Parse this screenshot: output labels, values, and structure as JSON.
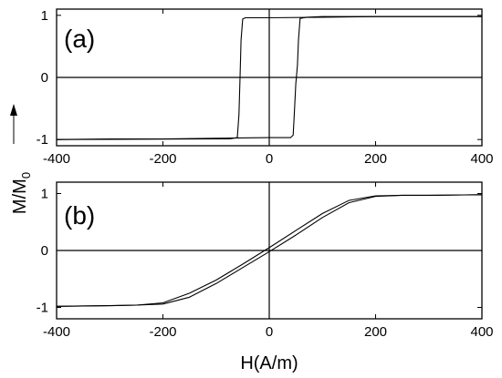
{
  "figure": {
    "ylabel": "M/M",
    "ylabel_subscript": "0",
    "xlabel": "H(A/m)"
  },
  "chart_data": [
    {
      "type": "line",
      "panel_label": "(a)",
      "xlim": [
        -400,
        400
      ],
      "ylim": [
        -1.1,
        1.1
      ],
      "x_ticks": [
        -400,
        -200,
        0,
        200,
        400
      ],
      "x_tick_labels": [
        "-400",
        "-200",
        "0",
        "200",
        "400"
      ],
      "y_ticks": [
        -1,
        0,
        1
      ],
      "y_tick_labels": [
        "-1",
        "0",
        "1"
      ],
      "grid": false,
      "series": [
        {
          "color": "#000000",
          "x": [
            -400,
            -100,
            -75,
            -60,
            -57,
            -55,
            -53,
            -50,
            -45,
            -30,
            0,
            100,
            200,
            300,
            400
          ],
          "y": [
            -1.0,
            -0.99,
            -0.99,
            -0.97,
            -0.6,
            0.0,
            0.6,
            0.94,
            0.96,
            0.96,
            0.96,
            0.97,
            0.98,
            0.98,
            0.98
          ]
        },
        {
          "color": "#000000",
          "x": [
            400,
            100,
            70,
            58,
            55,
            53,
            50,
            47,
            45,
            40,
            30,
            0,
            -100,
            -200,
            -300,
            -400
          ],
          "y": [
            0.98,
            0.98,
            0.97,
            0.95,
            0.6,
            0.2,
            -0.1,
            -0.6,
            -0.93,
            -0.97,
            -0.97,
            -0.97,
            -0.98,
            -0.99,
            -0.99,
            -1.0
          ]
        }
      ]
    },
    {
      "type": "line",
      "panel_label": "(b)",
      "xlim": [
        -400,
        400
      ],
      "ylim": [
        -1.2,
        1.2
      ],
      "x_ticks": [
        -400,
        -200,
        0,
        200,
        400
      ],
      "x_tick_labels": [
        "-400",
        "-200",
        "0",
        "200",
        "400"
      ],
      "y_ticks": [
        -1,
        0,
        1
      ],
      "y_tick_labels": [
        "-1",
        "0",
        "1"
      ],
      "grid": false,
      "series": [
        {
          "color": "#000000",
          "x": [
            -400,
            -300,
            -250,
            -200,
            -150,
            -100,
            -50,
            0,
            50,
            100,
            150,
            200,
            250,
            300,
            400
          ],
          "y": [
            -0.98,
            -0.97,
            -0.96,
            -0.92,
            -0.75,
            -0.52,
            -0.24,
            0.05,
            0.35,
            0.65,
            0.88,
            0.96,
            0.97,
            0.97,
            0.98
          ]
        },
        {
          "color": "#000000",
          "x": [
            400,
            300,
            250,
            200,
            150,
            100,
            50,
            0,
            -50,
            -100,
            -150,
            -200,
            -250,
            -300,
            -400
          ],
          "y": [
            0.98,
            0.97,
            0.97,
            0.95,
            0.84,
            0.58,
            0.27,
            -0.02,
            -0.3,
            -0.58,
            -0.82,
            -0.94,
            -0.96,
            -0.97,
            -0.98
          ]
        }
      ]
    }
  ]
}
